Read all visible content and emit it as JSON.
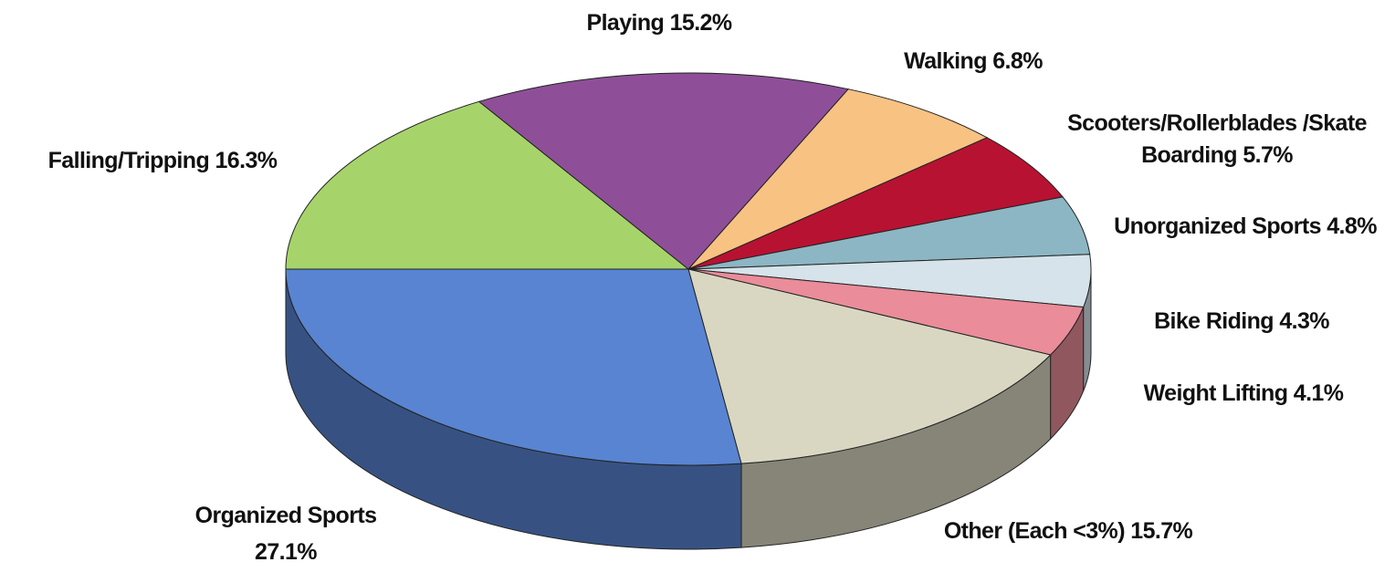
{
  "chart_data": {
    "type": "pie3d",
    "categories": [
      "Falling/Tripping",
      "Playing",
      "Walking",
      "Scooters/Rollerblades /Skate Boarding",
      "Unorganized Sports",
      "Bike Riding",
      "Weight Lifting",
      "Other (Each <3%)",
      "Organized Sports"
    ],
    "values": [
      16.3,
      15.2,
      6.8,
      5.7,
      4.8,
      4.3,
      4.1,
      15.7,
      27.1
    ],
    "value_labels": [
      "16.3%",
      "15.2%",
      "6.8%",
      "5.7%",
      "4.8%",
      "4.3%",
      "4.1%",
      "15.7%",
      "27.1%"
    ],
    "colors": [
      "#a6d46a",
      "#8e4f98",
      "#f8c283",
      "#b81232",
      "#8cb6c3",
      "#d6e3ea",
      "#ea8c9a",
      "#d9d7c2",
      "#5884d2"
    ]
  }
}
